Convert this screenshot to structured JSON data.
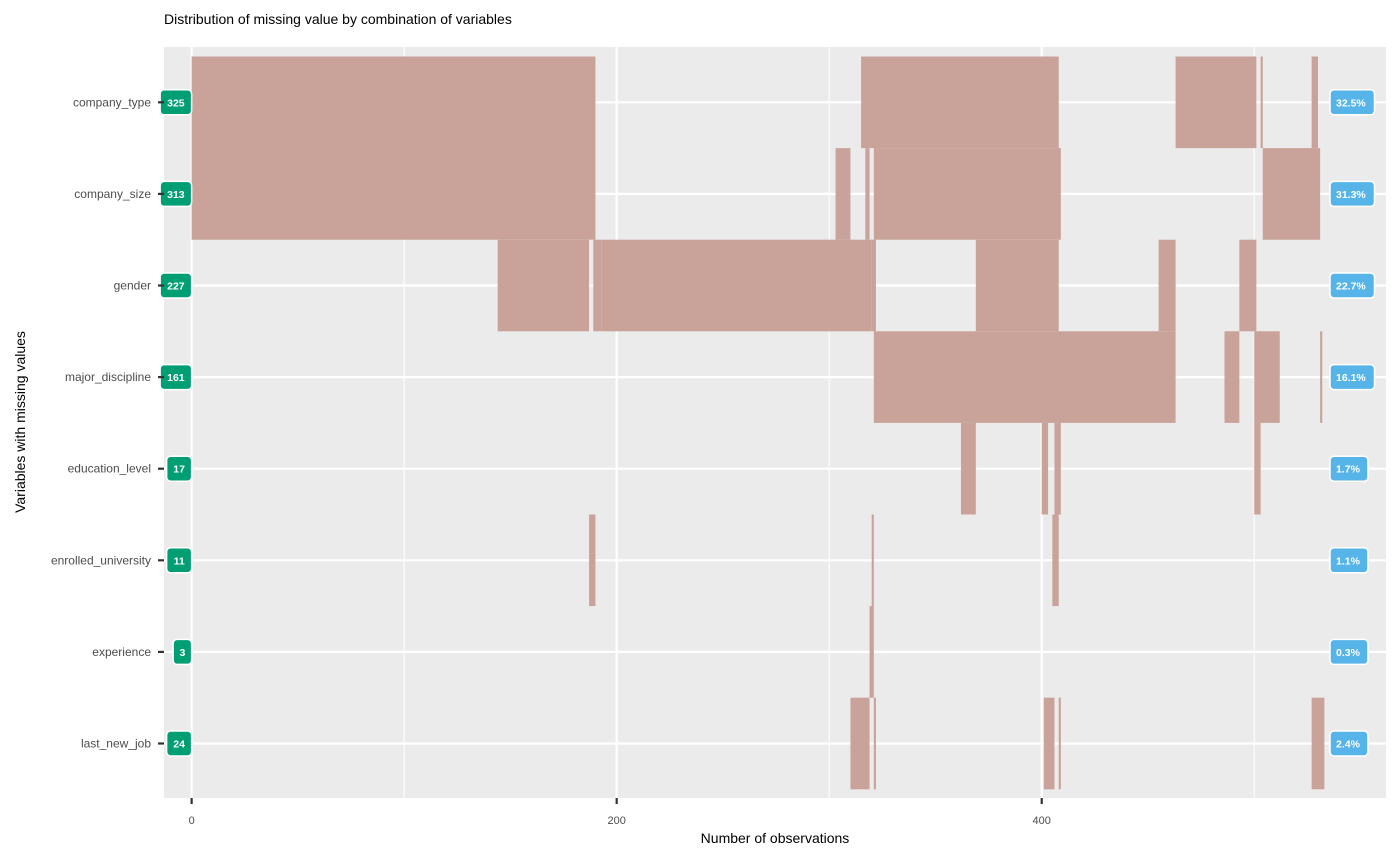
{
  "chart_data": {
    "type": "bar",
    "subtype": "missing-value-combination",
    "title": "Distribution of missing value by combination of variables",
    "xlabel": "Number of observations",
    "ylabel": "Variables with missing values",
    "xlim": [
      -13,
      562
    ],
    "x_ticks": [
      0,
      200,
      400
    ],
    "grid": true,
    "bar_color": "#c9a399",
    "count_badge_color": "#009e73",
    "percent_badge_color": "#56b4e9",
    "variables": [
      {
        "name": "company_type",
        "missing_count": "325",
        "missing_pct": "32.5%"
      },
      {
        "name": "company_size",
        "missing_count": "313",
        "missing_pct": "31.3%"
      },
      {
        "name": "gender",
        "missing_count": "227",
        "missing_pct": "22.7%"
      },
      {
        "name": "major_discipline",
        "missing_count": "161",
        "missing_pct": "16.1%"
      },
      {
        "name": "education_level",
        "missing_count": "17",
        "missing_pct": "1.7%"
      },
      {
        "name": "enrolled_university",
        "missing_count": "11",
        "missing_pct": "1.1%"
      },
      {
        "name": "experience",
        "missing_count": "3",
        "missing_pct": "0.3%"
      },
      {
        "name": "last_new_job",
        "missing_count": "24",
        "missing_pct": "2.4%"
      }
    ],
    "segments": [
      {
        "start": 0,
        "end": 190,
        "first": 0,
        "last": 1
      },
      {
        "start": 144,
        "end": 187,
        "first": 2,
        "last": 2
      },
      {
        "start": 187,
        "end": 190,
        "first": 5,
        "last": 5
      },
      {
        "start": 189,
        "end": 193,
        "first": 2,
        "last": 2
      },
      {
        "start": 193,
        "end": 320,
        "first": 2,
        "last": 2
      },
      {
        "start": 303,
        "end": 310,
        "first": 1,
        "last": 1
      },
      {
        "start": 310,
        "end": 319,
        "first": 7,
        "last": 7
      },
      {
        "start": 315,
        "end": 406,
        "first": 0,
        "last": 0
      },
      {
        "start": 317,
        "end": 319,
        "first": 1,
        "last": 1
      },
      {
        "start": 319,
        "end": 321,
        "first": 6,
        "last": 6
      },
      {
        "start": 320,
        "end": 322,
        "first": 2,
        "last": 2
      },
      {
        "start": 320,
        "end": 321,
        "first": 5,
        "last": 5
      },
      {
        "start": 321,
        "end": 409,
        "first": 1,
        "last": 1
      },
      {
        "start": 321,
        "end": 322,
        "first": 7,
        "last": 7
      },
      {
        "start": 321,
        "end": 463,
        "first": 3,
        "last": 3
      },
      {
        "start": 362,
        "end": 369,
        "first": 4,
        "last": 4
      },
      {
        "start": 369,
        "end": 408,
        "first": 2,
        "last": 2
      },
      {
        "start": 400,
        "end": 403,
        "first": 4,
        "last": 4
      },
      {
        "start": 401,
        "end": 406,
        "first": 7,
        "last": 7
      },
      {
        "start": 405,
        "end": 408,
        "first": 0,
        "last": 0
      },
      {
        "start": 405,
        "end": 408,
        "first": 5,
        "last": 5
      },
      {
        "start": 406,
        "end": 409,
        "first": 4,
        "last": 4
      },
      {
        "start": 408,
        "end": 409,
        "first": 7,
        "last": 7
      },
      {
        "start": 455,
        "end": 463,
        "first": 2,
        "last": 2
      },
      {
        "start": 463,
        "end": 501,
        "first": 0,
        "last": 0
      },
      {
        "start": 486,
        "end": 493,
        "first": 3,
        "last": 3
      },
      {
        "start": 493,
        "end": 501,
        "first": 2,
        "last": 2
      },
      {
        "start": 500,
        "end": 512,
        "first": 3,
        "last": 3
      },
      {
        "start": 500,
        "end": 503,
        "first": 4,
        "last": 4
      },
      {
        "start": 503,
        "end": 504,
        "first": 0,
        "last": 0
      },
      {
        "start": 504,
        "end": 531,
        "first": 1,
        "last": 1
      },
      {
        "start": 527,
        "end": 530,
        "first": 0,
        "last": 0
      },
      {
        "start": 527,
        "end": 533,
        "first": 7,
        "last": 7
      },
      {
        "start": 531,
        "end": 532,
        "first": 3,
        "last": 3
      }
    ]
  }
}
